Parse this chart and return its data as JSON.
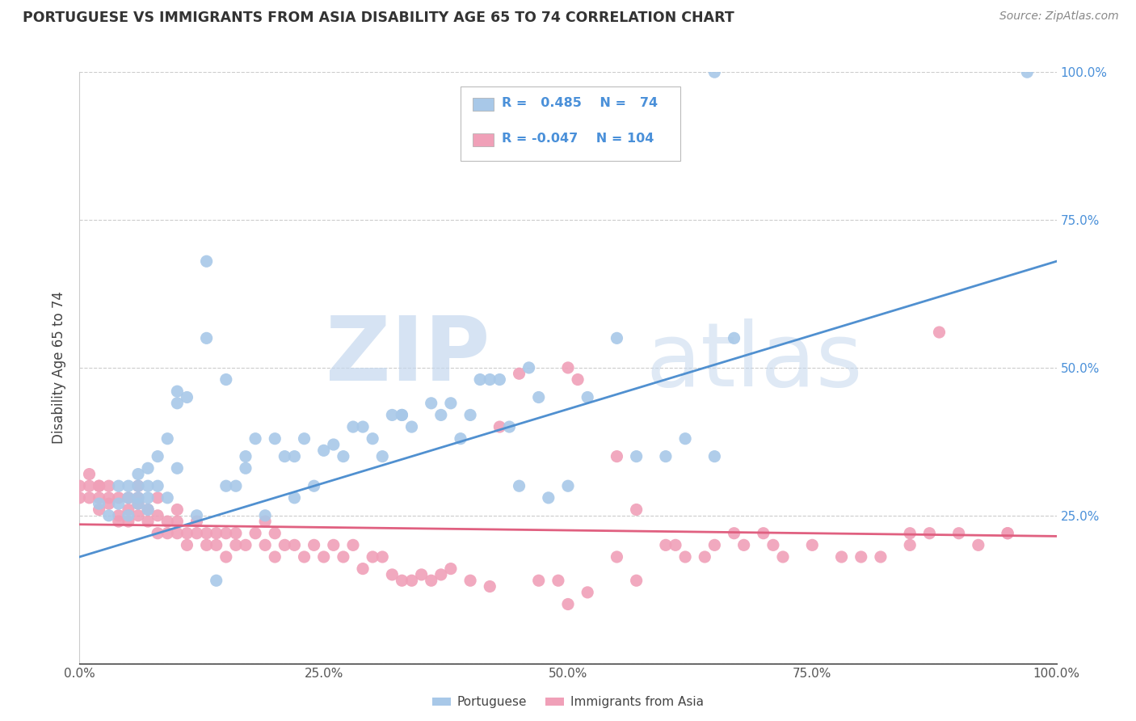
{
  "title": "PORTUGUESE VS IMMIGRANTS FROM ASIA DISABILITY AGE 65 TO 74 CORRELATION CHART",
  "source": "Source: ZipAtlas.com",
  "ylabel": "Disability Age 65 to 74",
  "xlim": [
    0,
    1
  ],
  "ylim": [
    0,
    1
  ],
  "xticks": [
    0.0,
    0.25,
    0.5,
    0.75,
    1.0
  ],
  "yticks": [
    0.0,
    0.25,
    0.5,
    0.75,
    1.0
  ],
  "xticklabels": [
    "0.0%",
    "25.0%",
    "50.0%",
    "75.0%",
    "100.0%"
  ],
  "right_yticklabels": [
    "",
    "25.0%",
    "50.0%",
    "75.0%",
    "100.0%"
  ],
  "blue_color": "#A8C8E8",
  "pink_color": "#F0A0B8",
  "blue_line_color": "#5090D0",
  "pink_line_color": "#E06080",
  "legend_text_color": "#4A90D9",
  "R_blue": 0.485,
  "N_blue": 74,
  "R_pink": -0.047,
  "N_pink": 104,
  "blue_intercept": 0.18,
  "blue_slope": 0.5,
  "pink_intercept": 0.235,
  "pink_slope": -0.02,
  "blue_points_x": [
    0.02,
    0.03,
    0.04,
    0.04,
    0.05,
    0.05,
    0.05,
    0.06,
    0.06,
    0.06,
    0.06,
    0.07,
    0.07,
    0.07,
    0.07,
    0.08,
    0.08,
    0.09,
    0.09,
    0.1,
    0.1,
    0.1,
    0.11,
    0.12,
    0.13,
    0.13,
    0.14,
    0.15,
    0.15,
    0.16,
    0.17,
    0.17,
    0.18,
    0.19,
    0.2,
    0.21,
    0.22,
    0.22,
    0.23,
    0.24,
    0.25,
    0.26,
    0.27,
    0.28,
    0.29,
    0.3,
    0.31,
    0.32,
    0.33,
    0.33,
    0.34,
    0.36,
    0.37,
    0.38,
    0.39,
    0.4,
    0.41,
    0.42,
    0.43,
    0.44,
    0.45,
    0.46,
    0.47,
    0.48,
    0.5,
    0.52,
    0.55,
    0.57,
    0.6,
    0.62,
    0.65,
    0.67,
    0.65,
    0.97
  ],
  "blue_points_y": [
    0.27,
    0.25,
    0.27,
    0.3,
    0.28,
    0.25,
    0.3,
    0.3,
    0.27,
    0.28,
    0.32,
    0.26,
    0.28,
    0.3,
    0.33,
    0.3,
    0.35,
    0.28,
    0.38,
    0.33,
    0.44,
    0.46,
    0.45,
    0.25,
    0.68,
    0.55,
    0.14,
    0.3,
    0.48,
    0.3,
    0.33,
    0.35,
    0.38,
    0.25,
    0.38,
    0.35,
    0.28,
    0.35,
    0.38,
    0.3,
    0.36,
    0.37,
    0.35,
    0.4,
    0.4,
    0.38,
    0.35,
    0.42,
    0.42,
    0.42,
    0.4,
    0.44,
    0.42,
    0.44,
    0.38,
    0.42,
    0.48,
    0.48,
    0.48,
    0.4,
    0.3,
    0.5,
    0.45,
    0.28,
    0.3,
    0.45,
    0.55,
    0.35,
    0.35,
    0.38,
    0.35,
    0.55,
    1.0,
    1.0
  ],
  "pink_points_x": [
    0.0,
    0.0,
    0.01,
    0.01,
    0.01,
    0.02,
    0.02,
    0.02,
    0.02,
    0.03,
    0.03,
    0.03,
    0.04,
    0.04,
    0.04,
    0.05,
    0.05,
    0.05,
    0.06,
    0.06,
    0.06,
    0.06,
    0.07,
    0.07,
    0.08,
    0.08,
    0.08,
    0.09,
    0.09,
    0.1,
    0.1,
    0.1,
    0.11,
    0.11,
    0.12,
    0.12,
    0.13,
    0.13,
    0.14,
    0.14,
    0.15,
    0.15,
    0.16,
    0.16,
    0.17,
    0.18,
    0.19,
    0.19,
    0.2,
    0.2,
    0.21,
    0.22,
    0.23,
    0.24,
    0.25,
    0.26,
    0.27,
    0.28,
    0.29,
    0.3,
    0.31,
    0.32,
    0.33,
    0.34,
    0.35,
    0.36,
    0.37,
    0.38,
    0.4,
    0.42,
    0.43,
    0.45,
    0.47,
    0.49,
    0.5,
    0.52,
    0.55,
    0.57,
    0.6,
    0.62,
    0.65,
    0.68,
    0.7,
    0.72,
    0.75,
    0.8,
    0.82,
    0.85,
    0.87,
    0.9,
    0.92,
    0.95,
    0.5,
    0.51,
    0.55,
    0.57,
    0.61,
    0.64,
    0.67,
    0.71,
    0.78,
    0.85,
    0.88,
    0.95
  ],
  "pink_points_y": [
    0.3,
    0.28,
    0.28,
    0.3,
    0.32,
    0.28,
    0.3,
    0.26,
    0.3,
    0.27,
    0.28,
    0.3,
    0.25,
    0.28,
    0.24,
    0.28,
    0.26,
    0.24,
    0.25,
    0.27,
    0.28,
    0.3,
    0.24,
    0.26,
    0.22,
    0.25,
    0.28,
    0.22,
    0.24,
    0.22,
    0.24,
    0.26,
    0.2,
    0.22,
    0.22,
    0.24,
    0.2,
    0.22,
    0.2,
    0.22,
    0.18,
    0.22,
    0.2,
    0.22,
    0.2,
    0.22,
    0.2,
    0.24,
    0.18,
    0.22,
    0.2,
    0.2,
    0.18,
    0.2,
    0.18,
    0.2,
    0.18,
    0.2,
    0.16,
    0.18,
    0.18,
    0.15,
    0.14,
    0.14,
    0.15,
    0.14,
    0.15,
    0.16,
    0.14,
    0.13,
    0.4,
    0.49,
    0.14,
    0.14,
    0.1,
    0.12,
    0.18,
    0.14,
    0.2,
    0.18,
    0.2,
    0.2,
    0.22,
    0.18,
    0.2,
    0.18,
    0.18,
    0.2,
    0.22,
    0.22,
    0.2,
    0.22,
    0.5,
    0.48,
    0.35,
    0.26,
    0.2,
    0.18,
    0.22,
    0.2,
    0.18,
    0.22,
    0.56,
    0.22
  ]
}
